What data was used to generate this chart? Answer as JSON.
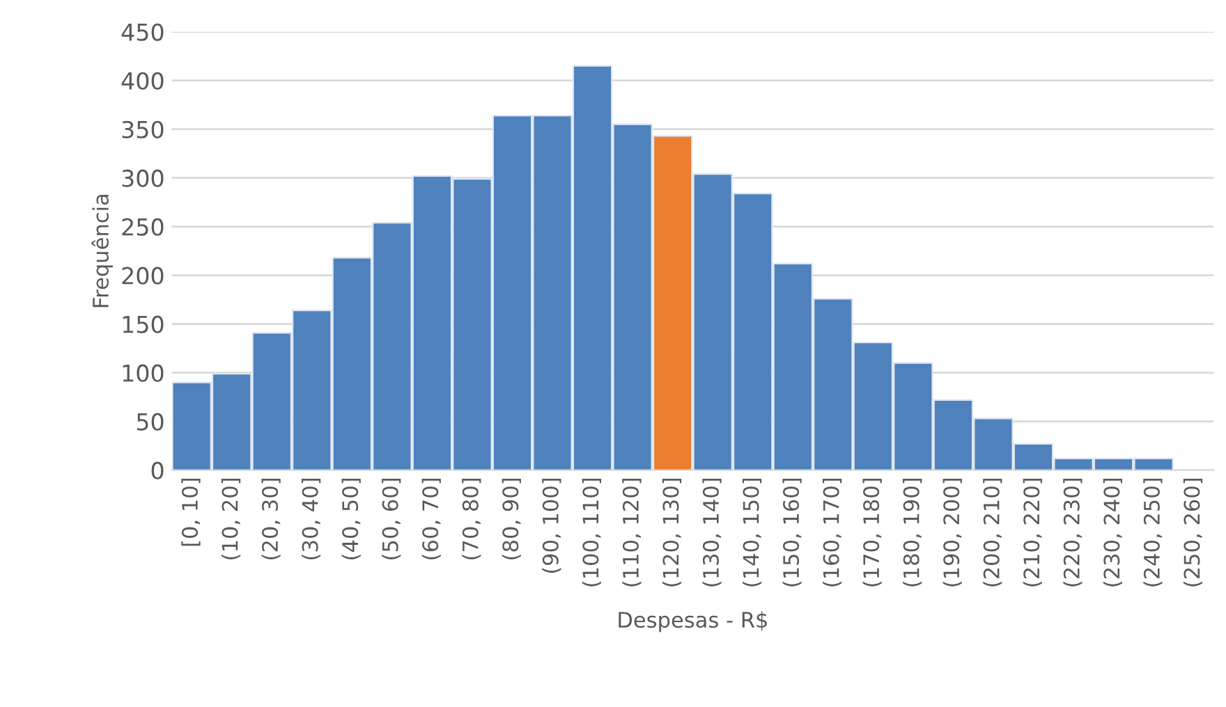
{
  "chart_data": {
    "type": "bar",
    "xlabel": "Despesas - R$",
    "ylabel": "Frequência",
    "categories": [
      "[0, 10]",
      "(10, 20]",
      "(20, 30]",
      "(30, 40]",
      "(40, 50]",
      "(50, 60]",
      "(60, 70]",
      "(70, 80]",
      "(80, 90]",
      "(90, 100]",
      "(100, 110]",
      "(110, 120]",
      "(120, 130]",
      "(130, 140]",
      "(140, 150]",
      "(150, 160]",
      "(160, 170]",
      "(170, 180]",
      "(180, 190]",
      "(190, 200]",
      "(200, 210]",
      "(210, 220]",
      "(220, 230]",
      "(230, 240]",
      "(240, 250]",
      "(250, 260]"
    ],
    "values": [
      90,
      99,
      141,
      164,
      218,
      254,
      302,
      299,
      364,
      364,
      415,
      355,
      343,
      304,
      284,
      212,
      176,
      131,
      110,
      72,
      53,
      27,
      12,
      12,
      12,
      0
    ],
    "colors": [
      "#4f81bd",
      "#4f81bd",
      "#4f81bd",
      "#4f81bd",
      "#4f81bd",
      "#4f81bd",
      "#4f81bd",
      "#4f81bd",
      "#4f81bd",
      "#4f81bd",
      "#4f81bd",
      "#4f81bd",
      "#ed7d31",
      "#4f81bd",
      "#4f81bd",
      "#4f81bd",
      "#4f81bd",
      "#4f81bd",
      "#4f81bd",
      "#4f81bd",
      "#4f81bd",
      "#4f81bd",
      "#4f81bd",
      "#4f81bd",
      "#4f81bd",
      "#4f81bd"
    ],
    "ylim": [
      0,
      450
    ],
    "yticks": [
      0,
      50,
      100,
      150,
      200,
      250,
      300,
      350,
      400,
      450
    ],
    "grid": "y"
  }
}
